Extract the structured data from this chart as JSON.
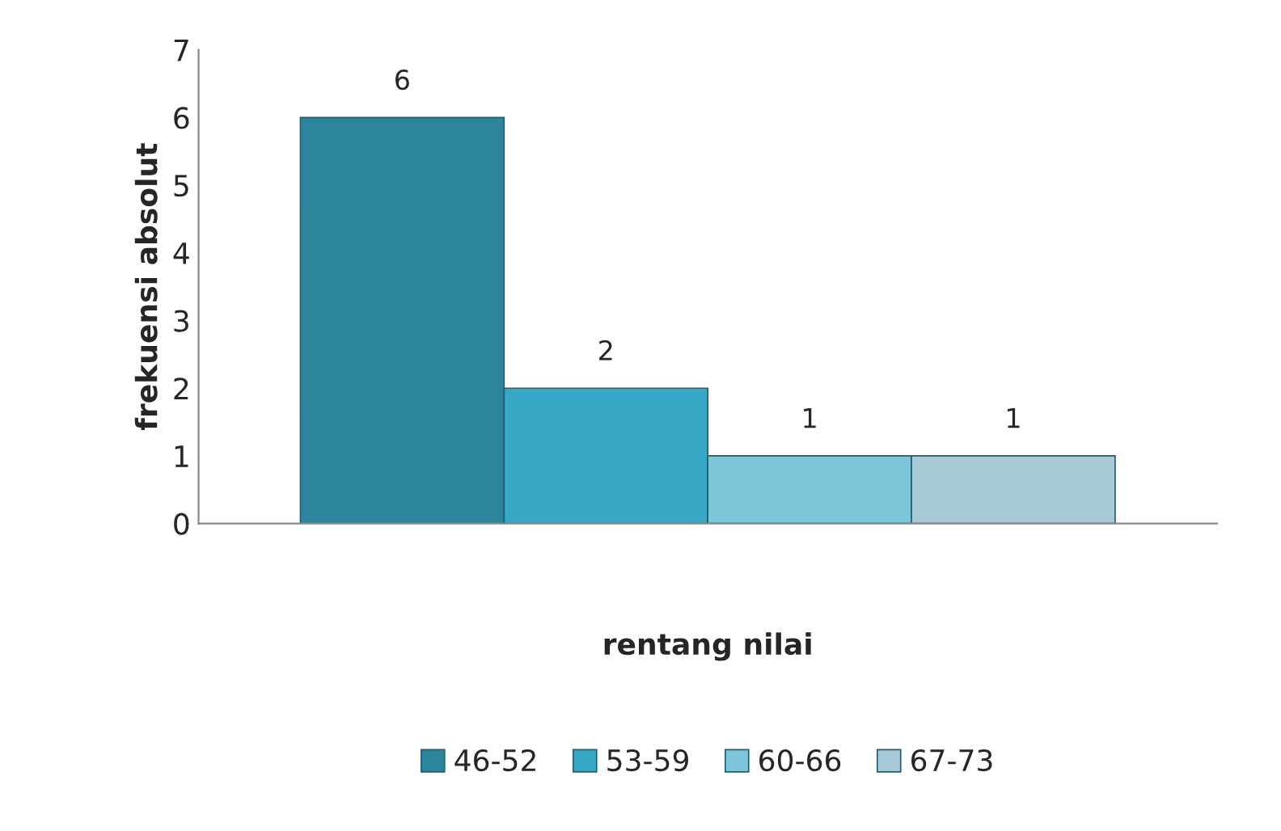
{
  "chart_data": {
    "type": "bar",
    "xlabel": "rentang nilai",
    "ylabel": "frekuensi absolut",
    "categories": [
      null
    ],
    "series": [
      {
        "name": "46-52",
        "color": "#2b869c",
        "values": [
          6
        ]
      },
      {
        "name": "53-59",
        "color": "#36a8c6",
        "values": [
          2
        ]
      },
      {
        "name": "60-66",
        "color": "#7cc6da",
        "values": [
          1
        ]
      },
      {
        "name": "67-73",
        "color": "#a8cad8",
        "values": [
          1
        ]
      }
    ],
    "ylim": [
      0,
      7
    ],
    "yticks": [
      0,
      1,
      2,
      3,
      4,
      5,
      6,
      7
    ],
    "grid": false,
    "legend": "bottom",
    "data_labels": true
  }
}
